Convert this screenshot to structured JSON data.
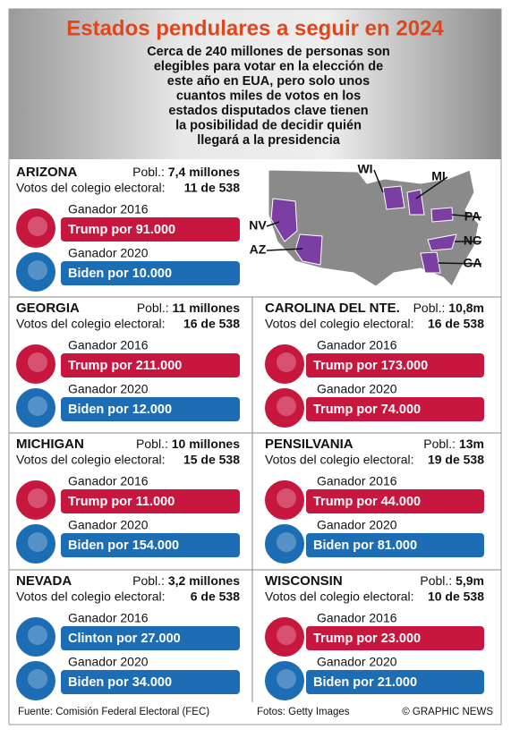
{
  "header": {
    "title": "Estados pendulares a seguir en 2024",
    "subtitle_lines": [
      "Cerca de 240 millones de personas son",
      "elegibles para votar en la elección de",
      "este año en EUA, pero solo unos",
      "cuantos miles de votos en los",
      "estados disputados clave tienen",
      "la posibilidad de decidir quién",
      "llegará a la presidencia"
    ]
  },
  "map": {
    "labels": [
      "WI",
      "MI",
      "PA",
      "NC",
      "GA",
      "NV",
      "AZ"
    ]
  },
  "states": [
    {
      "name": "ARIZONA",
      "pop_label": "Pobl.:",
      "pop": "7,4 millones",
      "votes_label": "Votos del colegio electoral:",
      "votes": "11 de 538",
      "results": [
        {
          "label": "Ganador 2016",
          "text": "Trump por 91.000",
          "color": "#c8173f"
        },
        {
          "label": "Ganador 2020",
          "text": "Biden por 10.000",
          "color": "#1c6db4"
        }
      ]
    },
    {
      "name": "GEORGIA",
      "pop_label": "Pobl.:",
      "pop": "11 millones",
      "votes_label": "Votos del colegio electoral:",
      "votes": "16 de 538",
      "results": [
        {
          "label": "Ganador 2016",
          "text": "Trump por 211.000",
          "color": "#c8173f"
        },
        {
          "label": "Ganador 2020",
          "text": "Biden por 12.000",
          "color": "#1c6db4"
        }
      ]
    },
    {
      "name": "CAROLINA DEL NTE.",
      "pop_label": "Pobl.:",
      "pop": "10,8m",
      "votes_label": "Votos del colegio electoral:",
      "votes": "16 de 538",
      "results": [
        {
          "label": "Ganador 2016",
          "text": "Trump por 173.000",
          "color": "#c8173f"
        },
        {
          "label": "Ganador 2020",
          "text": "Trump por 74.000",
          "color": "#c8173f"
        }
      ]
    },
    {
      "name": "MICHIGAN",
      "pop_label": "Pobl.:",
      "pop": "10 millones",
      "votes_label": "Votos del colegio electoral:",
      "votes": "15 de 538",
      "results": [
        {
          "label": "Ganador 2016",
          "text": "Trump por 11.000",
          "color": "#c8173f"
        },
        {
          "label": "Ganador 2020",
          "text": "Biden por 154.000",
          "color": "#1c6db4"
        }
      ]
    },
    {
      "name": "PENSILVANIA",
      "pop_label": "Pobl.:",
      "pop": "13m",
      "votes_label": "Votos del colegio electoral:",
      "votes": "19 de 538",
      "results": [
        {
          "label": "Ganador 2016",
          "text": "Trump por 44.000",
          "color": "#c8173f"
        },
        {
          "label": "Ganador 2020",
          "text": "Biden por 81.000",
          "color": "#1c6db4"
        }
      ]
    },
    {
      "name": "NEVADA",
      "pop_label": "Pobl.:",
      "pop": "3,2 millones",
      "votes_label": "Votos del colegio electoral:",
      "votes": "6 de 538",
      "results": [
        {
          "label": "Ganador 2016",
          "text": "Clinton por 27.000",
          "color": "#1c6db4"
        },
        {
          "label": "Ganador 2020",
          "text": "Biden por 34.000",
          "color": "#1c6db4"
        }
      ]
    },
    {
      "name": "WISCONSIN",
      "pop_label": "Pobl.:",
      "pop": "5,9m",
      "votes_label": "Votos del colegio electoral:",
      "votes": "10 de 538",
      "results": [
        {
          "label": "Ganador 2016",
          "text": "Trump por 23.000",
          "color": "#c8173f"
        },
        {
          "label": "Ganador 2020",
          "text": "Biden por 21.000",
          "color": "#1c6db4"
        }
      ]
    }
  ],
  "footer": {
    "source": "Fuente: Comisión Federal Electoral  (FEC)",
    "photos": "Fotos: Getty Images",
    "credit": "© GRAPHIC NEWS"
  }
}
